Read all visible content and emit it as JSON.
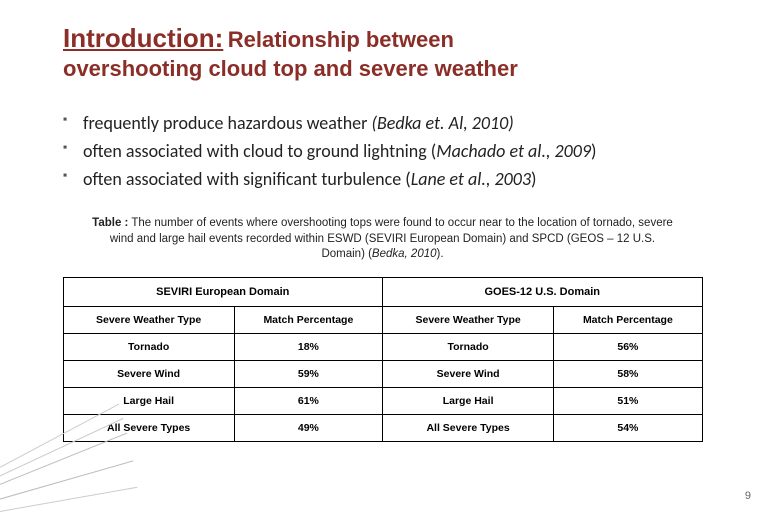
{
  "title": {
    "intro": "Introduction:",
    "rest1": "Relationship between",
    "rest2": "overshooting cloud top and severe weather"
  },
  "bullets": [
    {
      "text": "frequently produce hazardous weather ",
      "citation": "(Bedka et. Al, 2010)"
    },
    {
      "text": "often associated with cloud to ground lightning (",
      "citation": "Machado et al., 2009",
      "suffix": ")"
    },
    {
      "text": "often associated with significant turbulence (",
      "citation": "Lane et al., 2003",
      "suffix": ")"
    }
  ],
  "caption": {
    "label": "Table :",
    "body": " The number of events where overshooting tops were found to occur near to the location of tornado, severe wind and large hail events recorded within ESWD (SEVIRI European Domain) and SPCD (GEOS – 12 U.S. Domain) (",
    "cite": "Bedka, 2010",
    "tail": ")."
  },
  "table": {
    "group_headers": [
      "SEVIRI European Domain",
      "GOES-12 U.S. Domain"
    ],
    "col_headers": [
      "Severe Weather Type",
      "Match Percentage",
      "Severe Weather Type",
      "Match Percentage"
    ],
    "rows": [
      [
        "Tornado",
        "18%",
        "Tornado",
        "56%"
      ],
      [
        "Severe Wind",
        "59%",
        "Severe Wind",
        "58%"
      ],
      [
        "Large Hail",
        "61%",
        "Large Hail",
        "51%"
      ],
      [
        "All Severe Types",
        "49%",
        "All Severe Types",
        "54%"
      ]
    ]
  },
  "pagenum": "9"
}
